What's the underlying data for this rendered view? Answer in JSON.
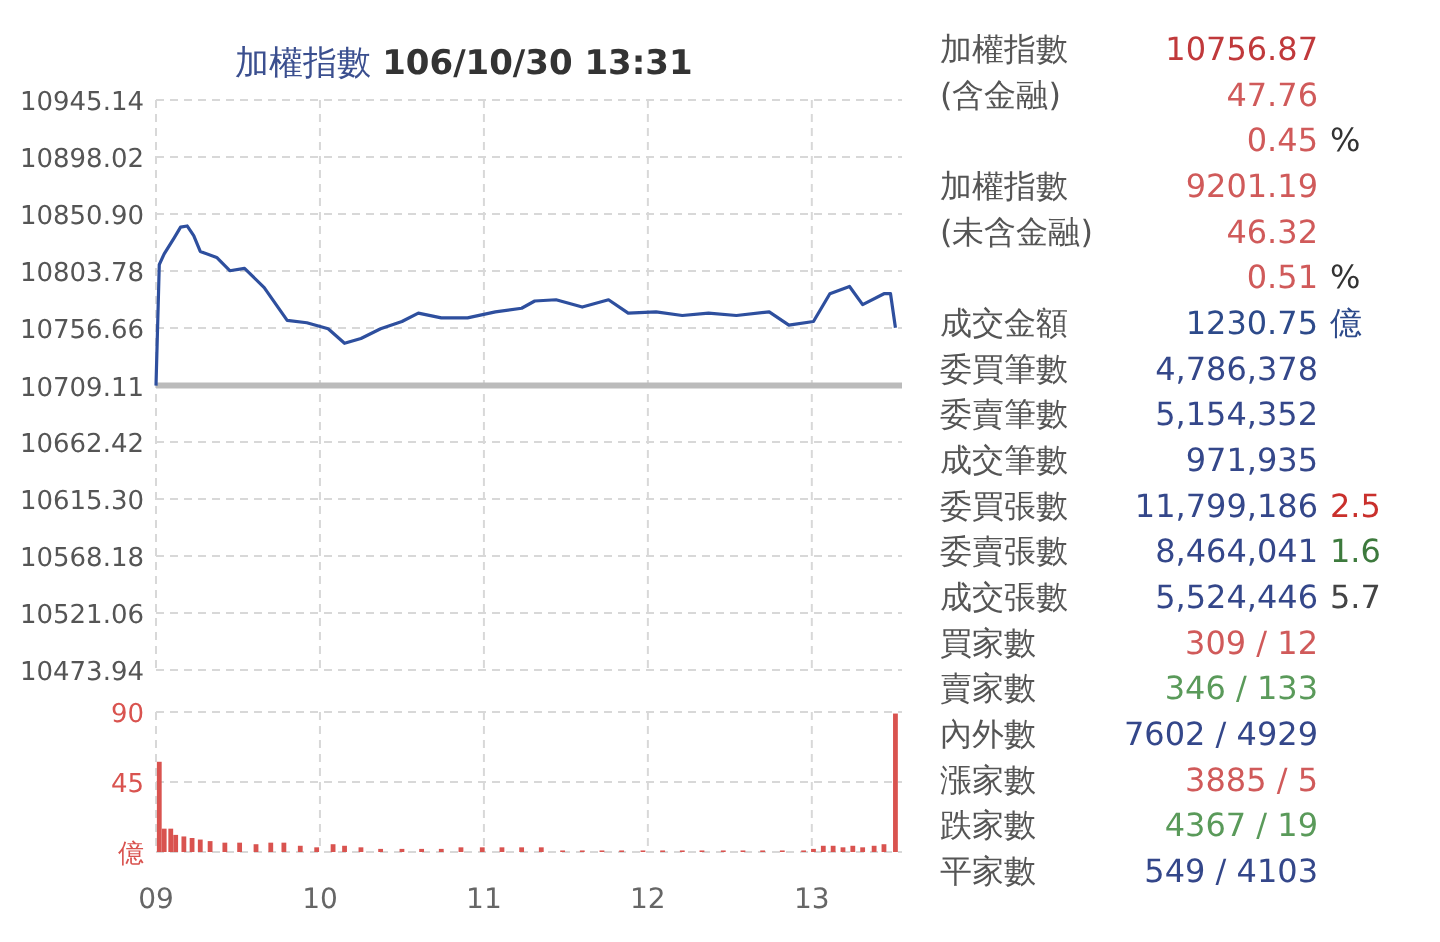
{
  "chart_data": [
    {
      "type": "line",
      "title": "加權指數 **106/10/30 13:31**",
      "x": [
        9.0,
        9.02,
        9.05,
        9.11,
        9.15,
        9.19,
        9.23,
        9.27,
        9.37,
        9.45,
        9.54,
        9.66,
        9.8,
        9.92,
        10.05,
        10.15,
        10.25,
        10.37,
        10.5,
        10.6,
        10.74,
        10.9,
        11.07,
        11.23,
        11.31,
        11.44,
        11.6,
        11.76,
        11.88,
        12.05,
        12.21,
        12.37,
        12.54,
        12.74,
        12.86,
        13.01,
        13.11,
        13.23,
        13.31,
        13.44,
        13.48,
        13.51
      ],
      "series": [
        {
          "color": "#2e4f9e",
          "values": [
            10709,
            10809,
            10818,
            10831,
            10840,
            10841,
            10833,
            10820,
            10815,
            10804,
            10806,
            10790,
            10763,
            10761,
            10756,
            10744,
            10748,
            10756,
            10762,
            10769,
            10765,
            10765,
            10770,
            10773,
            10779,
            10780,
            10774,
            10780,
            10769,
            10770,
            10767,
            10769,
            10767,
            10770,
            10759,
            10762,
            10785,
            10791,
            10776,
            10785,
            10785,
            10756.87
          ]
        }
      ],
      "xlim": [
        9,
        13.55
      ],
      "ylim": [
        10473.94,
        10945.14
      ],
      "xticks": [
        {
          "value": 9,
          "label": null
        },
        {
          "value": 10,
          "label": null
        },
        {
          "value": 11,
          "label": null
        },
        {
          "value": 12,
          "label": null
        },
        {
          "value": 13,
          "label": null
        }
      ],
      "yticks": [
        10473.94,
        10521.06,
        10568.18,
        {
          "value": 10615.3,
          "label": "10615.30"
        },
        10662.42,
        10709.11,
        10756.66,
        10803.78,
        {
          "value": 10850.9,
          "label": "10850.90"
        },
        10898.02,
        10945.14
      ],
      "tick_labels": "y",
      "grid": true,
      "line_style": "solid",
      "marker": "none",
      "ref_lines": [
        {
          "axis": "y",
          "value": 10709.11,
          "color": "#bbbbbb"
        }
      ]
    },
    {
      "type": "bar",
      "x": [
        9.02,
        9.05,
        9.09,
        9.12,
        9.17,
        9.22,
        9.27,
        9.33,
        9.42,
        9.51,
        9.61,
        9.7,
        9.78,
        9.88,
        9.98,
        10.08,
        10.15,
        10.25,
        10.37,
        10.5,
        10.62,
        10.74,
        10.86,
        10.99,
        11.11,
        11.23,
        11.35,
        11.48,
        11.6,
        11.72,
        11.84,
        11.97,
        12.09,
        12.21,
        12.33,
        12.46,
        12.58,
        12.7,
        12.82,
        12.95,
        13.01,
        13.07,
        13.13,
        13.19,
        13.25,
        13.31,
        13.38,
        13.44,
        13.51
      ],
      "series": [
        {
          "color": "#d9534f",
          "values": [
            58,
            15,
            15,
            11,
            10,
            9,
            8,
            7,
            6,
            6,
            5,
            6,
            6,
            4,
            3,
            5,
            4,
            3,
            2,
            2,
            2,
            2,
            3,
            3,
            3,
            3,
            3,
            1,
            1,
            1,
            1,
            1,
            1,
            1,
            1,
            1,
            1,
            1,
            1,
            1,
            2,
            4,
            4,
            3,
            4,
            3,
            4,
            5,
            89
          ]
        }
      ],
      "xlim": [
        9,
        13.55
      ],
      "ylim": [
        0,
        90
      ],
      "xticks": [
        {
          "value": 9,
          "label": "09"
        },
        10,
        11,
        12,
        13
      ],
      "yticks": [
        {
          "value": 0,
          "label": "億"
        },
        45,
        90
      ],
      "grid": true
    },
    {
      "type": "other",
      "y_categories": [
        "加權指數",
        "(含金融)",
        null,
        "加權指數",
        "(未含金融)",
        null,
        "成交金額",
        "委買筆數",
        "委賣筆數",
        "成交筆數",
        "委買張數",
        "委賣張數",
        "成交張數",
        "買家數",
        "賣家數",
        "內外數",
        "漲家數",
        "跌家數",
        "平家數"
      ],
      "cell_labels": [
        [
          "10756.87",
          null
        ],
        [
          "47.76",
          null
        ],
        [
          "0.45",
          "%"
        ],
        [
          "9201.19",
          null
        ],
        [
          "46.32",
          null
        ],
        [
          "0.51",
          "%"
        ],
        [
          "1230.75",
          "億"
        ],
        [
          "4,786,378",
          null
        ],
        [
          "5,154,352",
          null
        ],
        [
          "971,935",
          null
        ],
        [
          "11,799,186",
          "2.5"
        ],
        [
          "8,464,041",
          "1.6"
        ],
        [
          "5,524,446",
          "5.7"
        ],
        [
          "309 / 12",
          null
        ],
        [
          "346 / 133",
          null
        ],
        [
          "7602 / 4929",
          null
        ],
        [
          "3885 / 5",
          null
        ],
        [
          "4367 / 19",
          null
        ],
        [
          "549 / 4103",
          null
        ]
      ],
      "colors": [
        [
          "#c0393b",
          null
        ],
        [
          "#d05a5a",
          null
        ],
        [
          "#d05a5a",
          "#333333"
        ],
        [
          "#d05a5a",
          null
        ],
        [
          "#d05a5a",
          null
        ],
        [
          "#d05a5a",
          "#333333"
        ],
        [
          "#2d4a8a",
          "#2d4a8a"
        ],
        [
          "#34478a",
          null
        ],
        [
          "#34478a",
          null
        ],
        [
          "#34478a",
          null
        ],
        [
          "#34478a",
          "#c9302c"
        ],
        [
          "#34478a",
          "#3d7a3d"
        ],
        [
          "#34478a",
          "#444444"
        ],
        [
          "#d05a5a",
          null
        ],
        [
          "#5a9a5a",
          null
        ],
        [
          "#34478a",
          null
        ],
        [
          "#d05a5a",
          null
        ],
        [
          "#5a9a5a",
          null
        ],
        [
          "#34478a",
          null
        ]
      ]
    }
  ]
}
